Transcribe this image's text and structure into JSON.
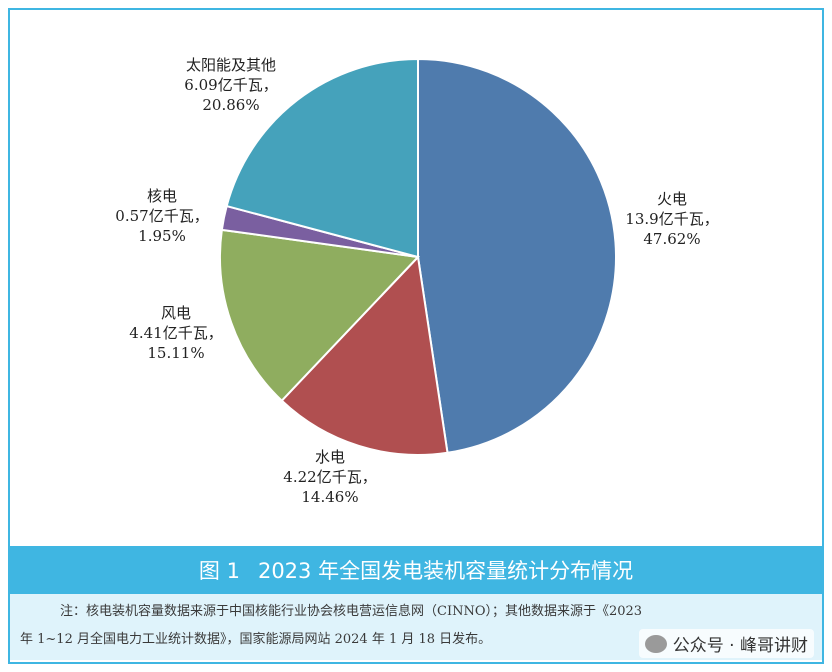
{
  "chart_data": {
    "type": "pie",
    "slices": [
      {
        "name": "火电",
        "value": 13.9,
        "unit": "亿千瓦",
        "percent": 47.62,
        "color": "#4f7bad"
      },
      {
        "name": "水电",
        "value": 4.22,
        "unit": "亿千瓦",
        "percent": 14.46,
        "color": "#b04f50"
      },
      {
        "name": "风电",
        "value": 4.41,
        "unit": "亿千瓦",
        "percent": 15.11,
        "color": "#8fad5f"
      },
      {
        "name": "核电",
        "value": 0.57,
        "unit": "亿千瓦",
        "percent": 1.95,
        "color": "#7a5fa0"
      },
      {
        "name": "太阳能及其他",
        "value": 6.09,
        "unit": "亿千瓦",
        "percent": 20.86,
        "color": "#45a2bb"
      }
    ],
    "labels": [
      {
        "name": "火电",
        "line2": "13.9亿千瓦，",
        "line3": "47.62%"
      },
      {
        "name": "水电",
        "line2": "4.22亿千瓦，",
        "line3": "14.46%"
      },
      {
        "name": "风电",
        "line2": "4.41亿千瓦，",
        "line3": "15.11%"
      },
      {
        "name": "核电",
        "line2": "0.57亿千瓦，",
        "line3": "1.95%"
      },
      {
        "name": "太阳能及其他",
        "line2": "6.09亿千瓦，",
        "line3": "20.86%"
      }
    ],
    "title": "图 1　2023 年全国发电装机容量统计分布情况",
    "start_angle": "12 o'clock",
    "direction": "clockwise"
  },
  "caption": {
    "figure": "图 1",
    "title": "2023 年全国发电装机容量统计分布情况"
  },
  "notes": {
    "line1": "注：核电装机容量数据来源于中国核能行业协会核电营运信息网（CINNO）；其他数据来源于《2023",
    "line2": "年 1~12 月全国电力工业统计数据》，国家能源局网站 2024 年 1 月 18 日发布。"
  },
  "watermark": {
    "text": "公众号 · 峰哥讲财",
    "icon": "wechat-icon"
  }
}
